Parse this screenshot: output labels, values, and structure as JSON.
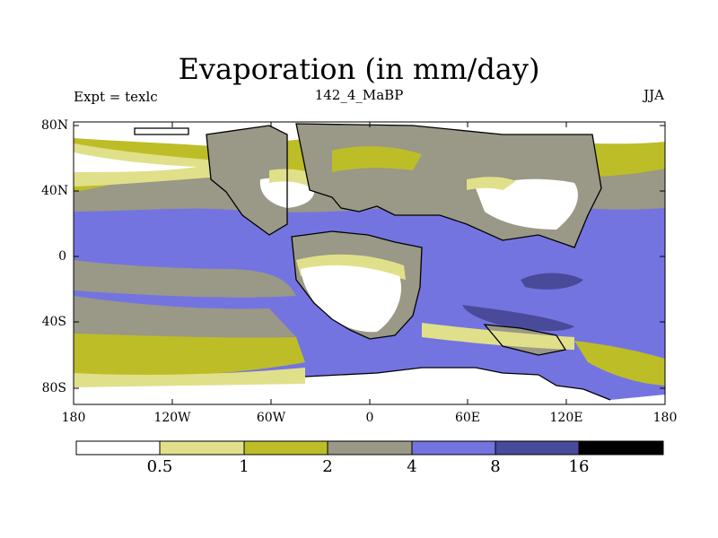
{
  "title": "Evaporation (in mm/day)",
  "left_string": "Expt = texlc",
  "center_string": "142_4_MaBP",
  "right_string": "JJA",
  "map": {
    "lat_labels": [
      "80N",
      "40N",
      "0",
      "40S",
      "80S"
    ],
    "lon_labels": [
      "180",
      "120W",
      "60W",
      "0",
      "60E",
      "120E",
      "180"
    ]
  },
  "colorbar": {
    "levels": [
      "0.5",
      "1",
      "2",
      "4",
      "8",
      "16"
    ],
    "colors": [
      "#ffffff",
      "#e0e08a",
      "#bdbd28",
      "#9a9886",
      "#7474e0",
      "#4a4a9a",
      "#000000"
    ]
  }
}
